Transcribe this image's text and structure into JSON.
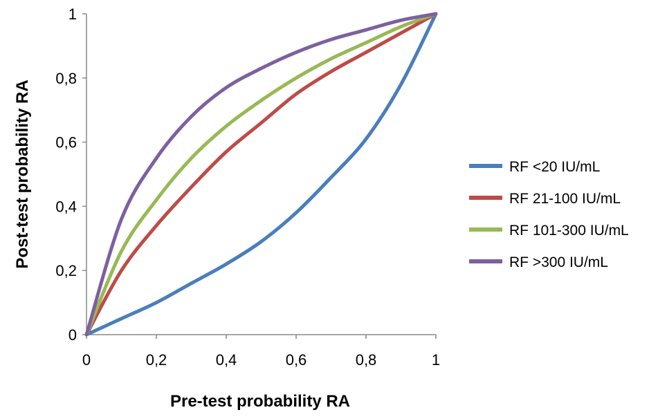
{
  "chart_data": {
    "type": "line",
    "xlabel": "Pre-test probability RA",
    "ylabel": "Post-test probability RA",
    "xlim": [
      0,
      1
    ],
    "ylim": [
      0,
      1
    ],
    "x_ticks": [
      "0",
      "0,2",
      "0,4",
      "0,6",
      "0,8",
      "1"
    ],
    "y_ticks": [
      "0",
      "0,2",
      "0,4",
      "0,6",
      "0,8",
      "1"
    ],
    "grid": false,
    "legend_position": "right",
    "series": [
      {
        "name": "RF <20 IU/mL",
        "color": "#4a7ebb",
        "x": [
          0,
          0.1,
          0.2,
          0.3,
          0.4,
          0.5,
          0.6,
          0.7,
          0.8,
          0.9,
          1
        ],
        "y": [
          0,
          0.05,
          0.1,
          0.16,
          0.22,
          0.29,
          0.38,
          0.49,
          0.61,
          0.78,
          1
        ]
      },
      {
        "name": "RF 21-100 IU/mL",
        "color": "#be4b48",
        "x": [
          0,
          0.1,
          0.2,
          0.3,
          0.4,
          0.5,
          0.6,
          0.7,
          0.8,
          0.9,
          1
        ],
        "y": [
          0,
          0.2,
          0.34,
          0.46,
          0.57,
          0.66,
          0.75,
          0.82,
          0.88,
          0.94,
          1
        ]
      },
      {
        "name": "RF 101-300 IU/mL",
        "color": "#98b954",
        "x": [
          0,
          0.1,
          0.2,
          0.3,
          0.4,
          0.5,
          0.6,
          0.7,
          0.8,
          0.9,
          1
        ],
        "y": [
          0,
          0.26,
          0.42,
          0.55,
          0.65,
          0.73,
          0.8,
          0.86,
          0.91,
          0.96,
          1
        ]
      },
      {
        "name": "RF >300 IU/mL",
        "color": "#7d60a0",
        "x": [
          0,
          0.1,
          0.2,
          0.3,
          0.4,
          0.5,
          0.6,
          0.7,
          0.8,
          0.9,
          1
        ],
        "y": [
          0,
          0.36,
          0.55,
          0.68,
          0.77,
          0.83,
          0.88,
          0.92,
          0.95,
          0.98,
          1
        ]
      }
    ]
  }
}
